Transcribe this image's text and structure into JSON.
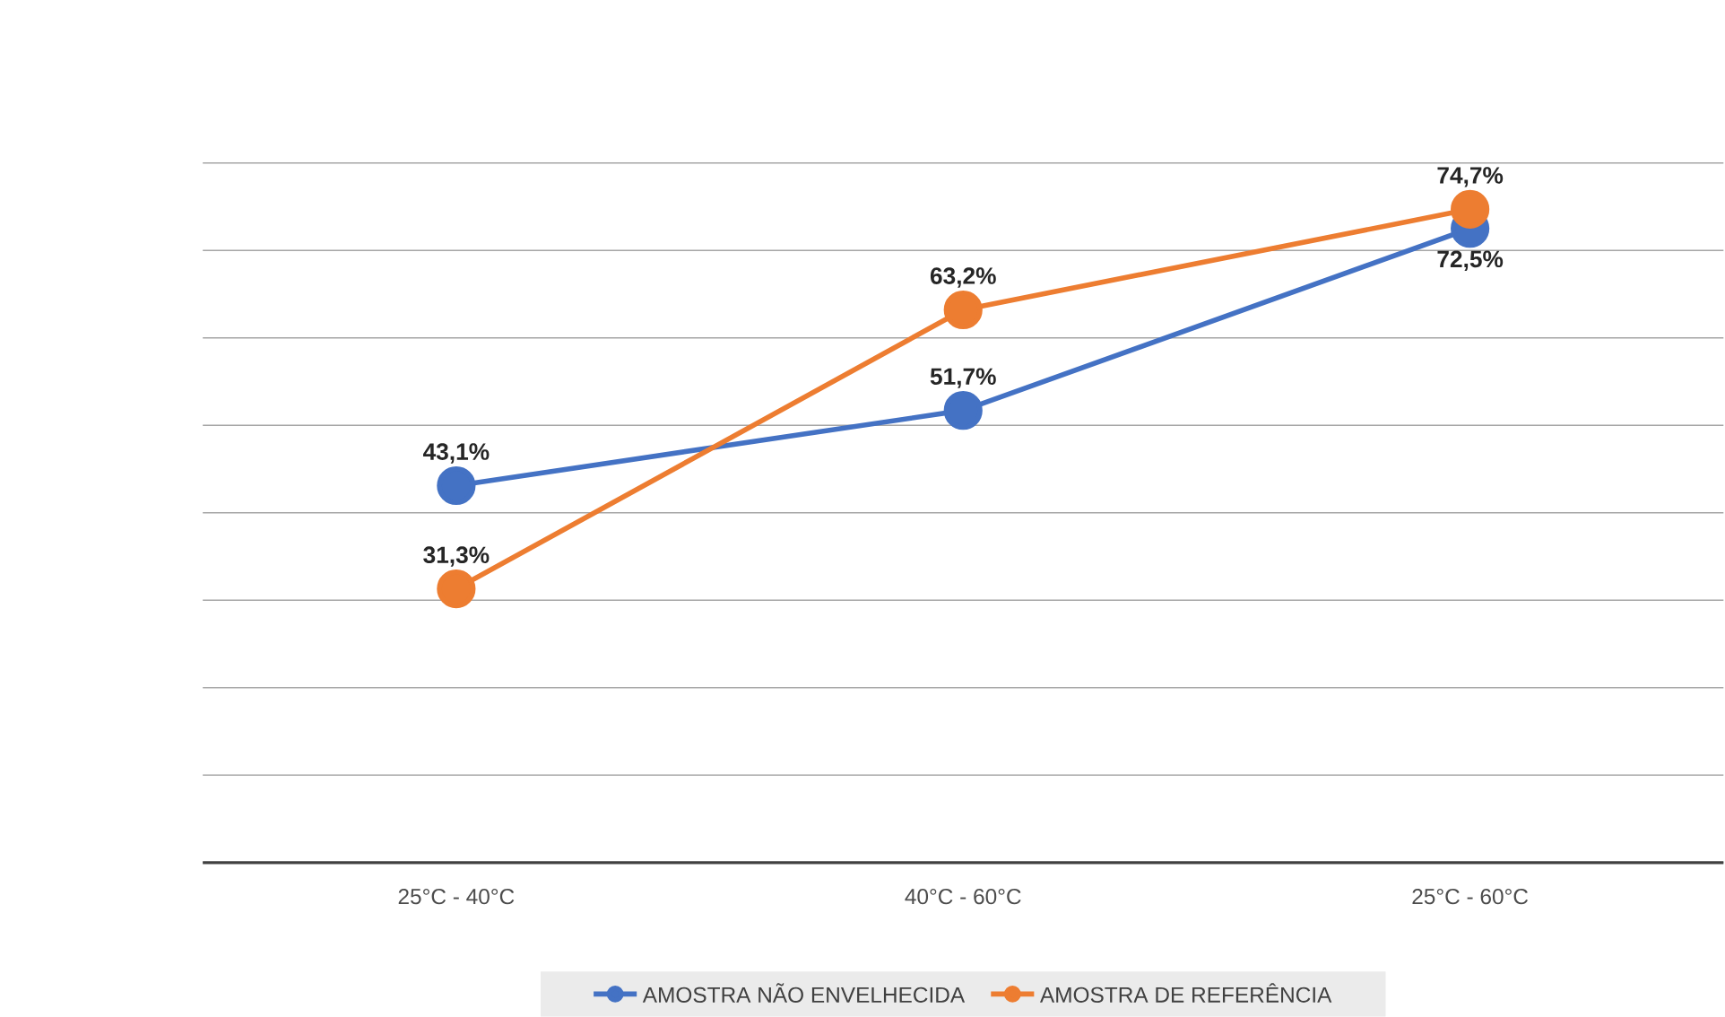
{
  "chart_data": {
    "type": "line",
    "categories": [
      "25°C - 40°C",
      "40°C - 60°C",
      "25°C - 60°C"
    ],
    "series": [
      {
        "name": "AMOSTRA NÃO ENVELHECIDA",
        "color": "#4472c4",
        "values": [
          43.1,
          51.7,
          72.5
        ],
        "value_labels": [
          "43,1%",
          "51,7%",
          "72,5%"
        ]
      },
      {
        "name": "AMOSTRA DE REFERÊNCIA",
        "color": "#ed7d31",
        "values": [
          31.3,
          63.2,
          74.7
        ],
        "value_labels": [
          "31,3%",
          "63,2%",
          "74,7%"
        ]
      }
    ],
    "ylim": [
      0,
      80
    ],
    "yticks": [
      {
        "value": 0,
        "label": null
      },
      {
        "value": 10,
        "label": null
      },
      {
        "value": 20,
        "label": null
      },
      {
        "value": 30,
        "label": null
      },
      {
        "value": 40,
        "label": null
      },
      {
        "value": 50,
        "label": null
      },
      {
        "value": 60,
        "label": null
      },
      {
        "value": 70,
        "label": null
      },
      {
        "value": 80,
        "label": null
      }
    ],
    "tick_labels": "x",
    "grid": "y",
    "legend": "bottom",
    "marker": "circle",
    "line_style": "solid"
  }
}
